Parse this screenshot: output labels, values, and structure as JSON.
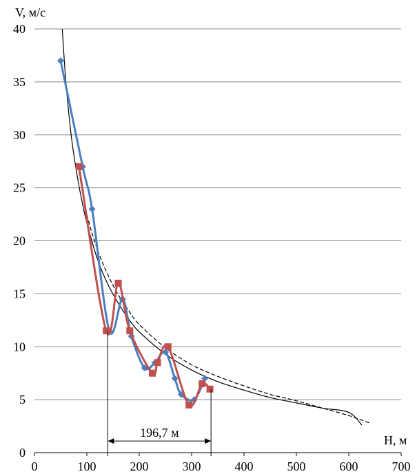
{
  "chart_data": {
    "type": "line",
    "title": "",
    "xlabel": "H, м",
    "ylabel": "V, м/с",
    "xlim": [
      0,
      700
    ],
    "ylim": [
      0,
      40
    ],
    "x_ticks": [
      0,
      100,
      200,
      300,
      400,
      500,
      600,
      700
    ],
    "y_ticks": [
      0,
      5,
      10,
      15,
      20,
      25,
      30,
      35,
      40
    ],
    "grid": "horizontal",
    "legend": "none",
    "series": [
      {
        "color": "#4a7ebf",
        "marker": "diamond",
        "smooth": true,
        "x": [
          50,
          92,
          110,
          143,
          168,
          185,
          210,
          230,
          250,
          268,
          280,
          305,
          325
        ],
        "y": [
          37,
          27,
          23,
          11.5,
          14.5,
          11,
          8,
          8.5,
          9.5,
          7,
          5.5,
          5,
          7
        ]
      },
      {
        "color": "#c0504d",
        "marker": "square",
        "smooth": true,
        "x": [
          85,
          137,
          160,
          182,
          225,
          235,
          255,
          295,
          320,
          335
        ],
        "y": [
          27,
          11.5,
          16,
          11.5,
          7.5,
          8.5,
          10,
          4.5,
          6.5,
          6
        ]
      },
      {
        "color": "#000000",
        "style": "solid",
        "fit": "power",
        "x": [
          53,
          60,
          70,
          80,
          90,
          100,
          120,
          140,
          160,
          180,
          200,
          250,
          300,
          350,
          400,
          450,
          500,
          550,
          600,
          625
        ],
        "y": [
          40,
          35,
          30,
          26.6,
          23.9,
          21.7,
          18.3,
          15.9,
          14.1,
          12.6,
          11.4,
          9.3,
          7.8,
          6.7,
          5.9,
          5.2,
          4.7,
          4.2,
          3.8,
          2.6
        ]
      },
      {
        "color": "#000000",
        "style": "dashed",
        "fit": "power",
        "x": [
          85,
          100,
          120,
          140,
          160,
          180,
          200,
          250,
          300,
          350,
          400,
          450,
          500,
          550,
          600,
          640
        ],
        "y": [
          26.5,
          22.5,
          19.2,
          16.8,
          14.9,
          13.4,
          12.1,
          9.9,
          8.3,
          7.2,
          6.3,
          5.5,
          4.9,
          4.2,
          3.5,
          2.8
        ]
      }
    ],
    "annotation": {
      "text": "196,7 м",
      "x_start": 140,
      "x_end": 337,
      "y": 1.1,
      "guide_top_start": 11.5,
      "guide_top_end": 6
    }
  }
}
